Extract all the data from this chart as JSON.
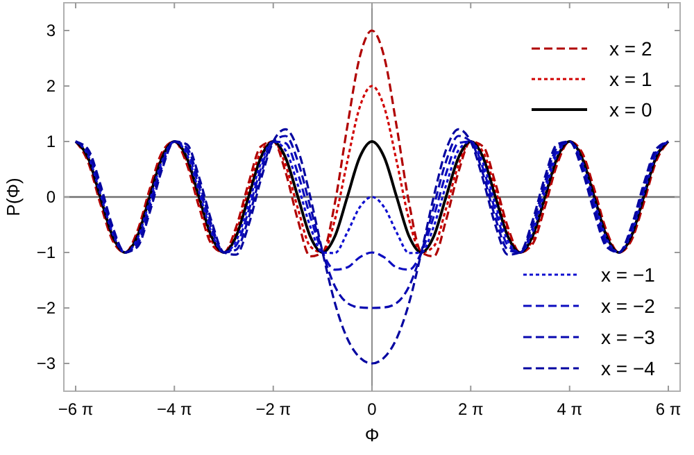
{
  "chart_data": {
    "type": "line",
    "xlabel": "Φ",
    "ylabel": "P(Φ)",
    "xlim": [
      -19.6,
      19.6
    ],
    "ylim": [
      -3.5,
      3.5
    ],
    "xticks": [
      {
        "value": -18.85,
        "label": "−6 π"
      },
      {
        "value": -12.57,
        "label": "−4 π"
      },
      {
        "value": -6.28,
        "label": "−2 π"
      },
      0,
      {
        "value": 6.28,
        "label": "2 π"
      },
      {
        "value": 12.57,
        "label": "4 π"
      },
      {
        "value": 18.85,
        "label": "6 π"
      }
    ],
    "yticks": [
      {
        "value": -3,
        "label": "−3"
      },
      {
        "value": -2,
        "label": "−2"
      },
      {
        "value": -1,
        "label": "−1"
      },
      0,
      1,
      2,
      3
    ],
    "grid": false,
    "legend": "right",
    "marker": "none",
    "ref_lines": [
      {
        "axis": "x",
        "value": 0,
        "color": "#8c8c8c"
      },
      {
        "axis": "y",
        "value": 0,
        "color": "#707070"
      }
    ],
    "x": [
      -18.85,
      -18.06,
      -17.28,
      -16.49,
      -15.71,
      -14.92,
      -14.14,
      -13.35,
      -12.57,
      -11.78,
      -11.0,
      -10.21,
      -9.42,
      -8.64,
      -7.85,
      -7.07,
      -6.28,
      -5.5,
      -4.71,
      -3.93,
      -3.14,
      -2.36,
      -1.57,
      -0.79,
      0,
      0.79,
      1.57,
      2.36,
      3.14,
      3.93,
      4.71,
      5.5,
      6.28,
      7.07,
      7.85,
      8.64,
      9.42,
      10.21,
      11.0,
      11.78,
      12.57,
      13.35,
      14.14,
      14.92,
      15.71,
      16.49,
      17.28,
      18.06,
      18.85
    ],
    "series": [
      {
        "name": "x = 2",
        "color": "#b00000",
        "line_style": "dashed",
        "values": [
          1,
          0.63,
          -0.12,
          -0.79,
          -1,
          -0.61,
          0.14,
          0.81,
          1,
          0.59,
          -0.18,
          -0.85,
          -1,
          -0.54,
          0.25,
          0.91,
          1,
          0.45,
          -0.42,
          -1.07,
          -1,
          -0.11,
          1.27,
          2.51,
          3,
          2.51,
          1.27,
          -0.11,
          -1,
          -1.07,
          -0.42,
          0.45,
          1,
          0.91,
          0.25,
          -0.54,
          -1,
          -0.85,
          -0.18,
          0.59,
          1,
          0.81,
          0.14,
          -0.61,
          -1,
          -0.79,
          -0.12,
          0.63,
          1
        ]
      },
      {
        "name": "x = 1",
        "color": "#d00000",
        "line_style": "dotted",
        "values": [
          1,
          0.67,
          -0.06,
          -0.75,
          -1,
          -0.66,
          0.07,
          0.76,
          1,
          0.65,
          -0.09,
          -0.78,
          -1,
          -0.63,
          0.13,
          0.81,
          1,
          0.58,
          -0.21,
          -0.89,
          -1,
          -0.41,
          0.64,
          1.61,
          2,
          1.61,
          0.64,
          -0.41,
          -1,
          -0.89,
          -0.21,
          0.58,
          1,
          0.81,
          0.13,
          -0.63,
          -1,
          -0.78,
          -0.09,
          0.65,
          1,
          0.76,
          0.07,
          -0.66,
          -1,
          -0.75,
          -0.06,
          0.67,
          1
        ]
      },
      {
        "name": "x = 0",
        "color": "#000000",
        "line_style": "solid",
        "values": [
          1,
          0.71,
          0,
          -0.71,
          -1,
          -0.71,
          0,
          0.71,
          1,
          0.71,
          0,
          -0.71,
          -1,
          -0.71,
          0,
          0.71,
          1,
          0.71,
          0,
          -0.71,
          -1,
          -0.71,
          0,
          0.71,
          1,
          0.71,
          0,
          -0.71,
          -1,
          -0.71,
          0,
          0.71,
          1,
          0.71,
          0,
          -0.71,
          -1,
          -0.71,
          0,
          0.71,
          1,
          0.71,
          0,
          -0.71,
          -1,
          -0.71,
          0,
          0.71,
          1
        ]
      },
      {
        "name": "x = −1",
        "color": "#1010d0",
        "line_style": "dotted",
        "values": [
          1,
          0.75,
          0.06,
          -0.66,
          -1,
          -0.75,
          -0.07,
          0.65,
          1,
          0.77,
          0.09,
          -0.64,
          -1,
          -0.79,
          -0.13,
          0.61,
          1,
          0.84,
          0.21,
          -0.53,
          -1,
          -1.01,
          -0.64,
          -0.19,
          0,
          -0.19,
          -0.64,
          -1.01,
          -1,
          -0.53,
          0.21,
          0.84,
          1,
          0.61,
          -0.13,
          -0.79,
          -1,
          -0.64,
          0.09,
          0.77,
          1,
          0.65,
          -0.07,
          -0.75,
          -1,
          -0.66,
          0.06,
          0.75,
          1
        ]
      },
      {
        "name": "x = −2",
        "color": "#0c0cc0",
        "line_style": "dashed",
        "values": [
          1,
          0.79,
          0.12,
          -0.62,
          -1,
          -0.8,
          -0.14,
          0.6,
          1,
          0.83,
          0.18,
          -0.57,
          -1,
          -0.87,
          -0.25,
          0.51,
          1,
          0.97,
          0.42,
          -0.35,
          -1,
          -1.31,
          -1.27,
          -1.09,
          -1,
          -1.09,
          -1.27,
          -1.31,
          -1,
          -0.35,
          0.42,
          0.97,
          1,
          0.51,
          -0.25,
          -0.87,
          -1,
          -0.57,
          0.18,
          0.83,
          1,
          0.6,
          -0.14,
          -0.8,
          -1,
          -0.62,
          0.12,
          0.79,
          1
        ]
      },
      {
        "name": "x = −3",
        "color": "#0808b0",
        "line_style": "dashed",
        "values": [
          1,
          0.82,
          0.17,
          -0.58,
          -1,
          -0.85,
          -0.21,
          0.55,
          1,
          0.89,
          0.27,
          -0.5,
          -1,
          -0.95,
          -0.38,
          0.41,
          1,
          1.1,
          0.64,
          -0.17,
          -1,
          -1.61,
          -1.91,
          -1.99,
          -2,
          -1.99,
          -1.91,
          -1.61,
          -1,
          -0.17,
          0.64,
          1.1,
          1,
          0.41,
          -0.38,
          -0.95,
          -1,
          -0.5,
          0.27,
          0.89,
          1,
          0.55,
          -0.21,
          -0.85,
          -1,
          -0.58,
          0.17,
          0.82,
          1
        ]
      },
      {
        "name": "x = −4",
        "color": "#0404a0",
        "line_style": "dashed",
        "values": [
          1,
          0.86,
          0.23,
          -0.54,
          -1,
          -0.9,
          -0.28,
          0.5,
          1,
          0.95,
          0.36,
          -0.43,
          -1,
          -1.04,
          -0.51,
          0.31,
          1,
          1.22,
          0.85,
          0.01,
          -1,
          -1.91,
          -2.55,
          -2.89,
          -3,
          -2.89,
          -2.55,
          -1.91,
          -1,
          0.01,
          0.85,
          1.22,
          1,
          0.31,
          -0.51,
          -1.04,
          -1,
          -0.43,
          0.36,
          0.95,
          1,
          0.5,
          -0.28,
          -0.9,
          -1,
          -0.54,
          0.23,
          0.86,
          1
        ]
      }
    ]
  }
}
